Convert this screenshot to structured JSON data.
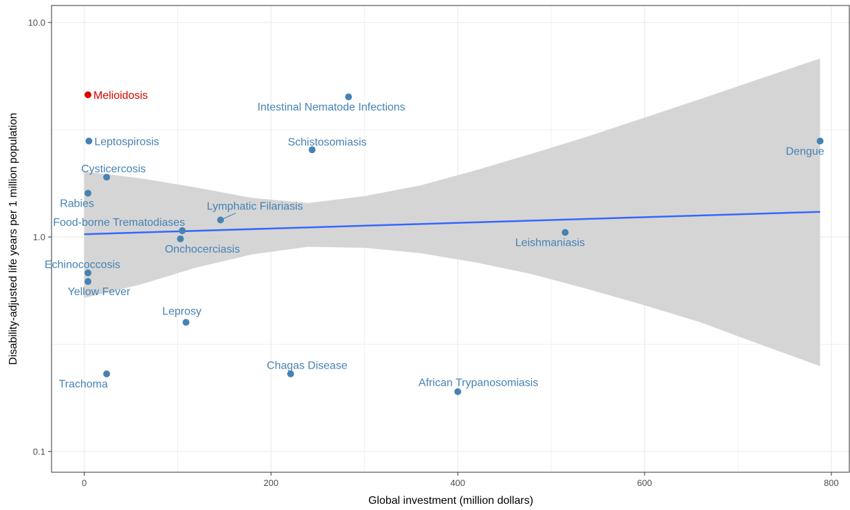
{
  "chart_data": {
    "type": "scatter",
    "title": "",
    "xlabel": "Global investment (million dollars)",
    "ylabel": "Disability-adjusted life years per 1 million population",
    "x_scale": "linear",
    "y_scale": "log10",
    "xlim": [
      -35,
      820
    ],
    "ylim": [
      0.08,
      12
    ],
    "x_ticks": [
      0,
      200,
      400,
      600,
      800
    ],
    "y_ticks": [
      0.1,
      1.0,
      10.0
    ],
    "y_tick_labels": [
      "0.1",
      "1.0",
      "10.0"
    ],
    "grid": true,
    "legend": "none",
    "colors": {
      "point": "#4682b4",
      "highlight": "#dd0000",
      "trend": "#3366ff",
      "band": "#d3d3d3"
    },
    "points": [
      {
        "label": "Melioidosis",
        "x": 4,
        "y": 4.6,
        "highlight": true
      },
      {
        "label": "Intestinal Nematode Infections",
        "x": 283,
        "y": 4.5,
        "highlight": false
      },
      {
        "label": "Leptospirosis",
        "x": 5,
        "y": 2.8,
        "highlight": false
      },
      {
        "label": "Schistosomiasis",
        "x": 244,
        "y": 2.55,
        "highlight": false
      },
      {
        "label": "Dengue",
        "x": 788,
        "y": 2.8,
        "highlight": false
      },
      {
        "label": "Cysticercosis",
        "x": 24,
        "y": 1.9,
        "highlight": false
      },
      {
        "label": "Rabies",
        "x": 4,
        "y": 1.6,
        "highlight": false
      },
      {
        "label": "Lymphatic Filariasis",
        "x": 146,
        "y": 1.2,
        "highlight": false
      },
      {
        "label": "Food-borne Trematodiases",
        "x": 105,
        "y": 1.07,
        "highlight": false
      },
      {
        "label": "Onchocerciasis",
        "x": 103,
        "y": 0.98,
        "highlight": false
      },
      {
        "label": "Leishmaniasis",
        "x": 515,
        "y": 1.05,
        "highlight": false
      },
      {
        "label": "Echinococcosis",
        "x": 4,
        "y": 0.68,
        "highlight": false
      },
      {
        "label": "Yellow Fever",
        "x": 4,
        "y": 0.62,
        "highlight": false
      },
      {
        "label": "Leprosy",
        "x": 109,
        "y": 0.4,
        "highlight": false
      },
      {
        "label": "Chagas Disease",
        "x": 221,
        "y": 0.23,
        "highlight": false
      },
      {
        "label": "Trachoma",
        "x": 24,
        "y": 0.23,
        "highlight": false
      },
      {
        "label": "African Trypanosomiasis",
        "x": 400,
        "y": 0.19,
        "highlight": false
      }
    ],
    "trend_line": {
      "x": [
        0,
        788
      ],
      "y": [
        1.03,
        1.31
      ]
    },
    "confidence_band": [
      {
        "x": 0,
        "lower": 0.52,
        "upper": 2.02
      },
      {
        "x": 60,
        "lower": 0.6,
        "upper": 1.88
      },
      {
        "x": 120,
        "lower": 0.72,
        "upper": 1.7
      },
      {
        "x": 180,
        "lower": 0.83,
        "upper": 1.52
      },
      {
        "x": 240,
        "lower": 0.9,
        "upper": 1.44
      },
      {
        "x": 300,
        "lower": 0.89,
        "upper": 1.55
      },
      {
        "x": 360,
        "lower": 0.84,
        "upper": 1.74
      },
      {
        "x": 420,
        "lower": 0.76,
        "upper": 2.05
      },
      {
        "x": 480,
        "lower": 0.67,
        "upper": 2.45
      },
      {
        "x": 540,
        "lower": 0.57,
        "upper": 2.95
      },
      {
        "x": 600,
        "lower": 0.48,
        "upper": 3.6
      },
      {
        "x": 660,
        "lower": 0.4,
        "upper": 4.4
      },
      {
        "x": 720,
        "lower": 0.32,
        "upper": 5.4
      },
      {
        "x": 788,
        "lower": 0.25,
        "upper": 6.8
      }
    ]
  }
}
